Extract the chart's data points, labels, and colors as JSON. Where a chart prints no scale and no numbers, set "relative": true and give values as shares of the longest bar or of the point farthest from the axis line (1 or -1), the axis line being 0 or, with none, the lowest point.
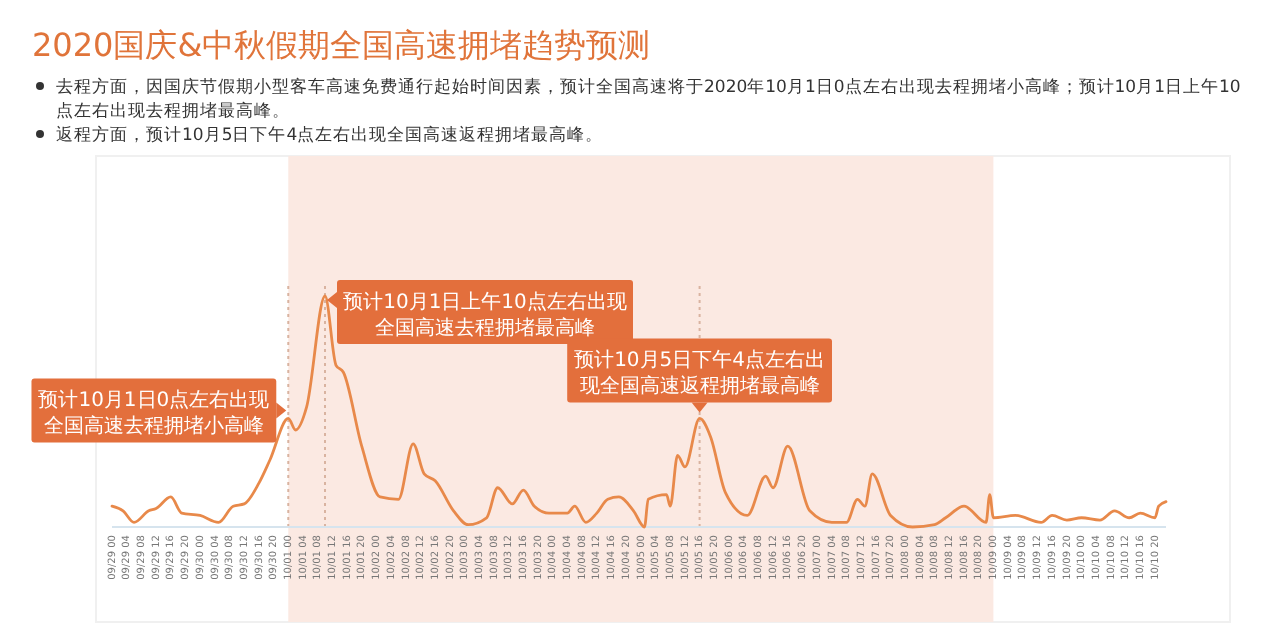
{
  "chart_data": {
    "type": "line",
    "relative": true,
    "title": "2020国庆&中秋假期全国高速拥堵趋势预测",
    "annotations": [
      "去程方面，因国庆节假期小型客车高速免费通行起始时间因素，预计全国高速将于2020年10月1日0点左右出现去程拥堵小高峰；预计10月1日上午10点左右出现去程拥堵最高峰。",
      "返程方面，预计10月5日下午4点左右出现全国高速返程拥堵最高峰。",
      {
        "text": "预计10月1日0点左右出现全国高速去程拥堵小高峰",
        "x": "2020-10-01T00:00",
        "y": 0.47
      },
      {
        "text": "预计10月1日上午10点左右出现全国高速去程拥堵最高峰",
        "x": "2020-10-01T10:00",
        "y": 1
      },
      {
        "text": "预计10月5日下午4点左右出现全国高速返程拥堵最高峰",
        "x": "2020-10-05T16:00",
        "y": 0.47
      }
    ],
    "x": [
      "2020-09-29T00:00",
      "2020-09-29T03:00",
      "2020-09-29T06:00",
      "2020-09-29T10:00",
      "2020-09-29T12:00",
      "2020-09-29T16:00",
      "2020-09-29T19:00",
      "2020-09-30T00:00",
      "2020-09-30T05:00",
      "2020-09-30T09:00",
      "2020-09-30T12:00",
      "2020-09-30T16:00",
      "2020-09-30T19:00",
      "2020-10-01T00:00",
      "2020-10-01T02:00",
      "2020-10-01T05:00",
      "2020-10-01T10:00",
      "2020-10-01T13:00",
      "2020-10-01T15:00",
      "2020-10-01T20:00",
      "2020-10-02T01:00",
      "2020-10-02T06:00",
      "2020-10-02T10:00",
      "2020-10-02T13:00",
      "2020-10-02T16:00",
      "2020-10-02T21:00",
      "2020-10-03T01:00",
      "2020-10-03T06:00",
      "2020-10-03T09:00",
      "2020-10-03T13:00",
      "2020-10-03T16:00",
      "2020-10-03T19:00",
      "2020-10-03T23:00",
      "2020-10-04T04:00",
      "2020-10-04T06:00",
      "2020-10-04T09:00",
      "2020-10-04T12:00",
      "2020-10-04T15:00",
      "2020-10-04T18:00",
      "2020-10-04T22:00",
      "2020-10-05T01:00",
      "2020-10-05T02:00",
      "2020-10-05T07:00",
      "2020-10-05T08:00",
      "2020-10-05T10:00",
      "2020-10-05T12:00",
      "2020-10-05T16:00",
      "2020-10-05T19:00",
      "2020-10-05T23:00",
      "2020-10-06T05:00",
      "2020-10-06T10:00",
      "2020-10-06T12:00",
      "2020-10-06T16:00",
      "2020-10-06T22:00",
      "2020-10-07T04:00",
      "2020-10-07T08:00",
      "2020-10-07T11:00",
      "2020-10-07T13:00",
      "2020-10-07T15:00",
      "2020-10-07T20:00",
      "2020-10-08T02:00",
      "2020-10-08T08:00",
      "2020-10-08T11:00",
      "2020-10-08T16:00",
      "2020-10-08T22:00",
      "2020-10-08T23:00",
      "2020-10-09T00:00",
      "2020-10-09T06:00",
      "2020-10-09T13:00",
      "2020-10-09T16:00",
      "2020-10-09T20:00",
      "2020-10-10T00:00",
      "2020-10-10T05:00",
      "2020-10-10T09:00",
      "2020-10-10T13:00",
      "2020-10-10T16:00",
      "2020-10-10T20:00",
      "2020-10-10T21:00",
      "2020-10-10T23:00"
    ],
    "series": [
      {
        "color": "#e8894a",
        "values": [
          0.09,
          0.07,
          0.02,
          0.07,
          0.08,
          0.13,
          0.06,
          0.05,
          0.02,
          0.09,
          0.1,
          0.19,
          0.29,
          0.47,
          0.42,
          0.52,
          1,
          0.7,
          0.67,
          0.35,
          0.13,
          0.12,
          0.36,
          0.23,
          0.2,
          0.07,
          0.01,
          0.04,
          0.17,
          0.1,
          0.16,
          0.09,
          0.06,
          0.06,
          0.09,
          0.02,
          0.06,
          0.12,
          0.13,
          0.07,
          0.0,
          0.12,
          0.14,
          0.09,
          0.31,
          0.26,
          0.47,
          0.39,
          0.15,
          0.05,
          0.22,
          0.17,
          0.35,
          0.07,
          0.02,
          0.02,
          0.12,
          0.09,
          0.23,
          0.05,
          0.0,
          0.01,
          0.04,
          0.09,
          0.02,
          0.14,
          0.04,
          0.05,
          0.02,
          0.05,
          0.03,
          0.04,
          0.03,
          0.07,
          0.04,
          0.06,
          0.04,
          0.09,
          0.11
        ]
      }
    ],
    "xlim": [
      "2020-09-29T00:00",
      "2020-10-10T23:00"
    ],
    "xticks": [
      {
        "value": "2020-09-29T00:00",
        "label": "09/29 00"
      },
      {
        "value": "2020-09-29T04:00",
        "label": "09/29 04"
      },
      {
        "value": "2020-09-29T08:00",
        "label": "09/29 08"
      },
      {
        "value": "2020-09-29T12:00",
        "label": "09/29 12"
      },
      {
        "value": "2020-09-29T16:00",
        "label": "09/29 16"
      },
      {
        "value": "2020-09-29T20:00",
        "label": "09/29 20"
      },
      {
        "value": "2020-09-30T00:00",
        "label": "09/30 00"
      },
      {
        "value": "2020-09-30T04:00",
        "label": "09/30 04"
      },
      {
        "value": "2020-09-30T08:00",
        "label": "09/30 08"
      },
      {
        "value": "2020-09-30T12:00",
        "label": "09/30 12"
      },
      {
        "value": "2020-09-30T16:00",
        "label": "09/30 16"
      },
      {
        "value": "2020-09-30T20:00",
        "label": "09/30 20"
      },
      {
        "value": "2020-10-01T00:00",
        "label": "10/01 00"
      },
      {
        "value": "2020-10-01T04:00",
        "label": "10/01 04"
      },
      {
        "value": "2020-10-01T08:00",
        "label": "10/01 08"
      },
      {
        "value": "2020-10-01T12:00",
        "label": "10/01 12"
      },
      {
        "value": "2020-10-01T16:00",
        "label": "10/01 16"
      },
      {
        "value": "2020-10-01T20:00",
        "label": "10/01 20"
      },
      {
        "value": "2020-10-02T00:00",
        "label": "10/02 00"
      },
      {
        "value": "2020-10-02T04:00",
        "label": "10/02 04"
      },
      {
        "value": "2020-10-02T08:00",
        "label": "10/02 08"
      },
      {
        "value": "2020-10-02T12:00",
        "label": "10/02 12"
      },
      {
        "value": "2020-10-02T16:00",
        "label": "10/02 16"
      },
      {
        "value": "2020-10-02T20:00",
        "label": "10/02 20"
      },
      {
        "value": "2020-10-03T00:00",
        "label": "10/03 00"
      },
      {
        "value": "2020-10-03T04:00",
        "label": "10/03 04"
      },
      {
        "value": "2020-10-03T08:00",
        "label": "10/03 08"
      },
      {
        "value": "2020-10-03T12:00",
        "label": "10/03 12"
      },
      {
        "value": "2020-10-03T16:00",
        "label": "10/03 16"
      },
      {
        "value": "2020-10-03T20:00",
        "label": "10/03 20"
      },
      {
        "value": "2020-10-04T00:00",
        "label": "10/04 00"
      },
      {
        "value": "2020-10-04T04:00",
        "label": "10/04 04"
      },
      {
        "value": "2020-10-04T08:00",
        "label": "10/04 08"
      },
      {
        "value": "2020-10-04T12:00",
        "label": "10/04 12"
      },
      {
        "value": "2020-10-04T16:00",
        "label": "10/04 16"
      },
      {
        "value": "2020-10-04T20:00",
        "label": "10/04 20"
      },
      {
        "value": "2020-10-05T00:00",
        "label": "10/05 00"
      },
      {
        "value": "2020-10-05T04:00",
        "label": "10/05 04"
      },
      {
        "value": "2020-10-05T08:00",
        "label": "10/05 08"
      },
      {
        "value": "2020-10-05T12:00",
        "label": "10/05 12"
      },
      {
        "value": "2020-10-05T16:00",
        "label": "10/05 16"
      },
      {
        "value": "2020-10-05T20:00",
        "label": "10/05 20"
      },
      {
        "value": "2020-10-06T00:00",
        "label": "10/06 00"
      },
      {
        "value": "2020-10-06T04:00",
        "label": "10/06 04"
      },
      {
        "value": "2020-10-06T08:00",
        "label": "10/06 08"
      },
      {
        "value": "2020-10-06T12:00",
        "label": "10/06 12"
      },
      {
        "value": "2020-10-06T16:00",
        "label": "10/06 16"
      },
      {
        "value": "2020-10-06T20:00",
        "label": "10/06 20"
      },
      {
        "value": "2020-10-07T00:00",
        "label": "10/07 00"
      },
      {
        "value": "2020-10-07T04:00",
        "label": "10/07 04"
      },
      {
        "value": "2020-10-07T08:00",
        "label": "10/07 08"
      },
      {
        "value": "2020-10-07T12:00",
        "label": "10/07 12"
      },
      {
        "value": "2020-10-07T16:00",
        "label": "10/07 16"
      },
      {
        "value": "2020-10-07T20:00",
        "label": "10/07 20"
      },
      {
        "value": "2020-10-08T00:00",
        "label": "10/08 00"
      },
      {
        "value": "2020-10-08T04:00",
        "label": "10/08 04"
      },
      {
        "value": "2020-10-08T08:00",
        "label": "10/08 08"
      },
      {
        "value": "2020-10-08T12:00",
        "label": "10/08 12"
      },
      {
        "value": "2020-10-08T16:00",
        "label": "10/08 16"
      },
      {
        "value": "2020-10-08T20:00",
        "label": "10/08 20"
      },
      {
        "value": "2020-10-09T00:00",
        "label": "10/09 00"
      },
      {
        "value": "2020-10-09T04:00",
        "label": "10/09 04"
      },
      {
        "value": "2020-10-09T08:00",
        "label": "10/09 08"
      },
      {
        "value": "2020-10-09T12:00",
        "label": "10/09 12"
      },
      {
        "value": "2020-10-09T16:00",
        "label": "10/09 16"
      },
      {
        "value": "2020-10-09T20:00",
        "label": "10/09 20"
      },
      {
        "value": "2020-10-10T00:00",
        "label": "10/10 00"
      },
      {
        "value": "2020-10-10T04:00",
        "label": "10/10 04"
      },
      {
        "value": "2020-10-10T08:00",
        "label": "10/10 08"
      },
      {
        "value": "2020-10-10T12:00",
        "label": "10/10 12"
      },
      {
        "value": "2020-10-10T16:00",
        "label": "10/10 16"
      },
      {
        "value": "2020-10-10T20:00",
        "label": "10/10 20"
      }
    ],
    "bands": [
      {
        "axis": "x",
        "from": "2020-10-01T00:00",
        "to": "2020-10-09T00:00",
        "color": "#fbe9e2"
      }
    ],
    "ref_lines": [
      {
        "axis": "x",
        "value": "2020-10-01T00:00",
        "line_style": "dotted",
        "color": "#d9b3a0"
      },
      {
        "axis": "x",
        "value": "2020-10-01T10:00",
        "line_style": "dotted",
        "color": "#d9b3a0"
      },
      {
        "axis": "x",
        "value": "2020-10-05T16:00",
        "line_style": "dotted",
        "color": "#d9b3a0"
      }
    ],
    "line_style": "solid"
  }
}
